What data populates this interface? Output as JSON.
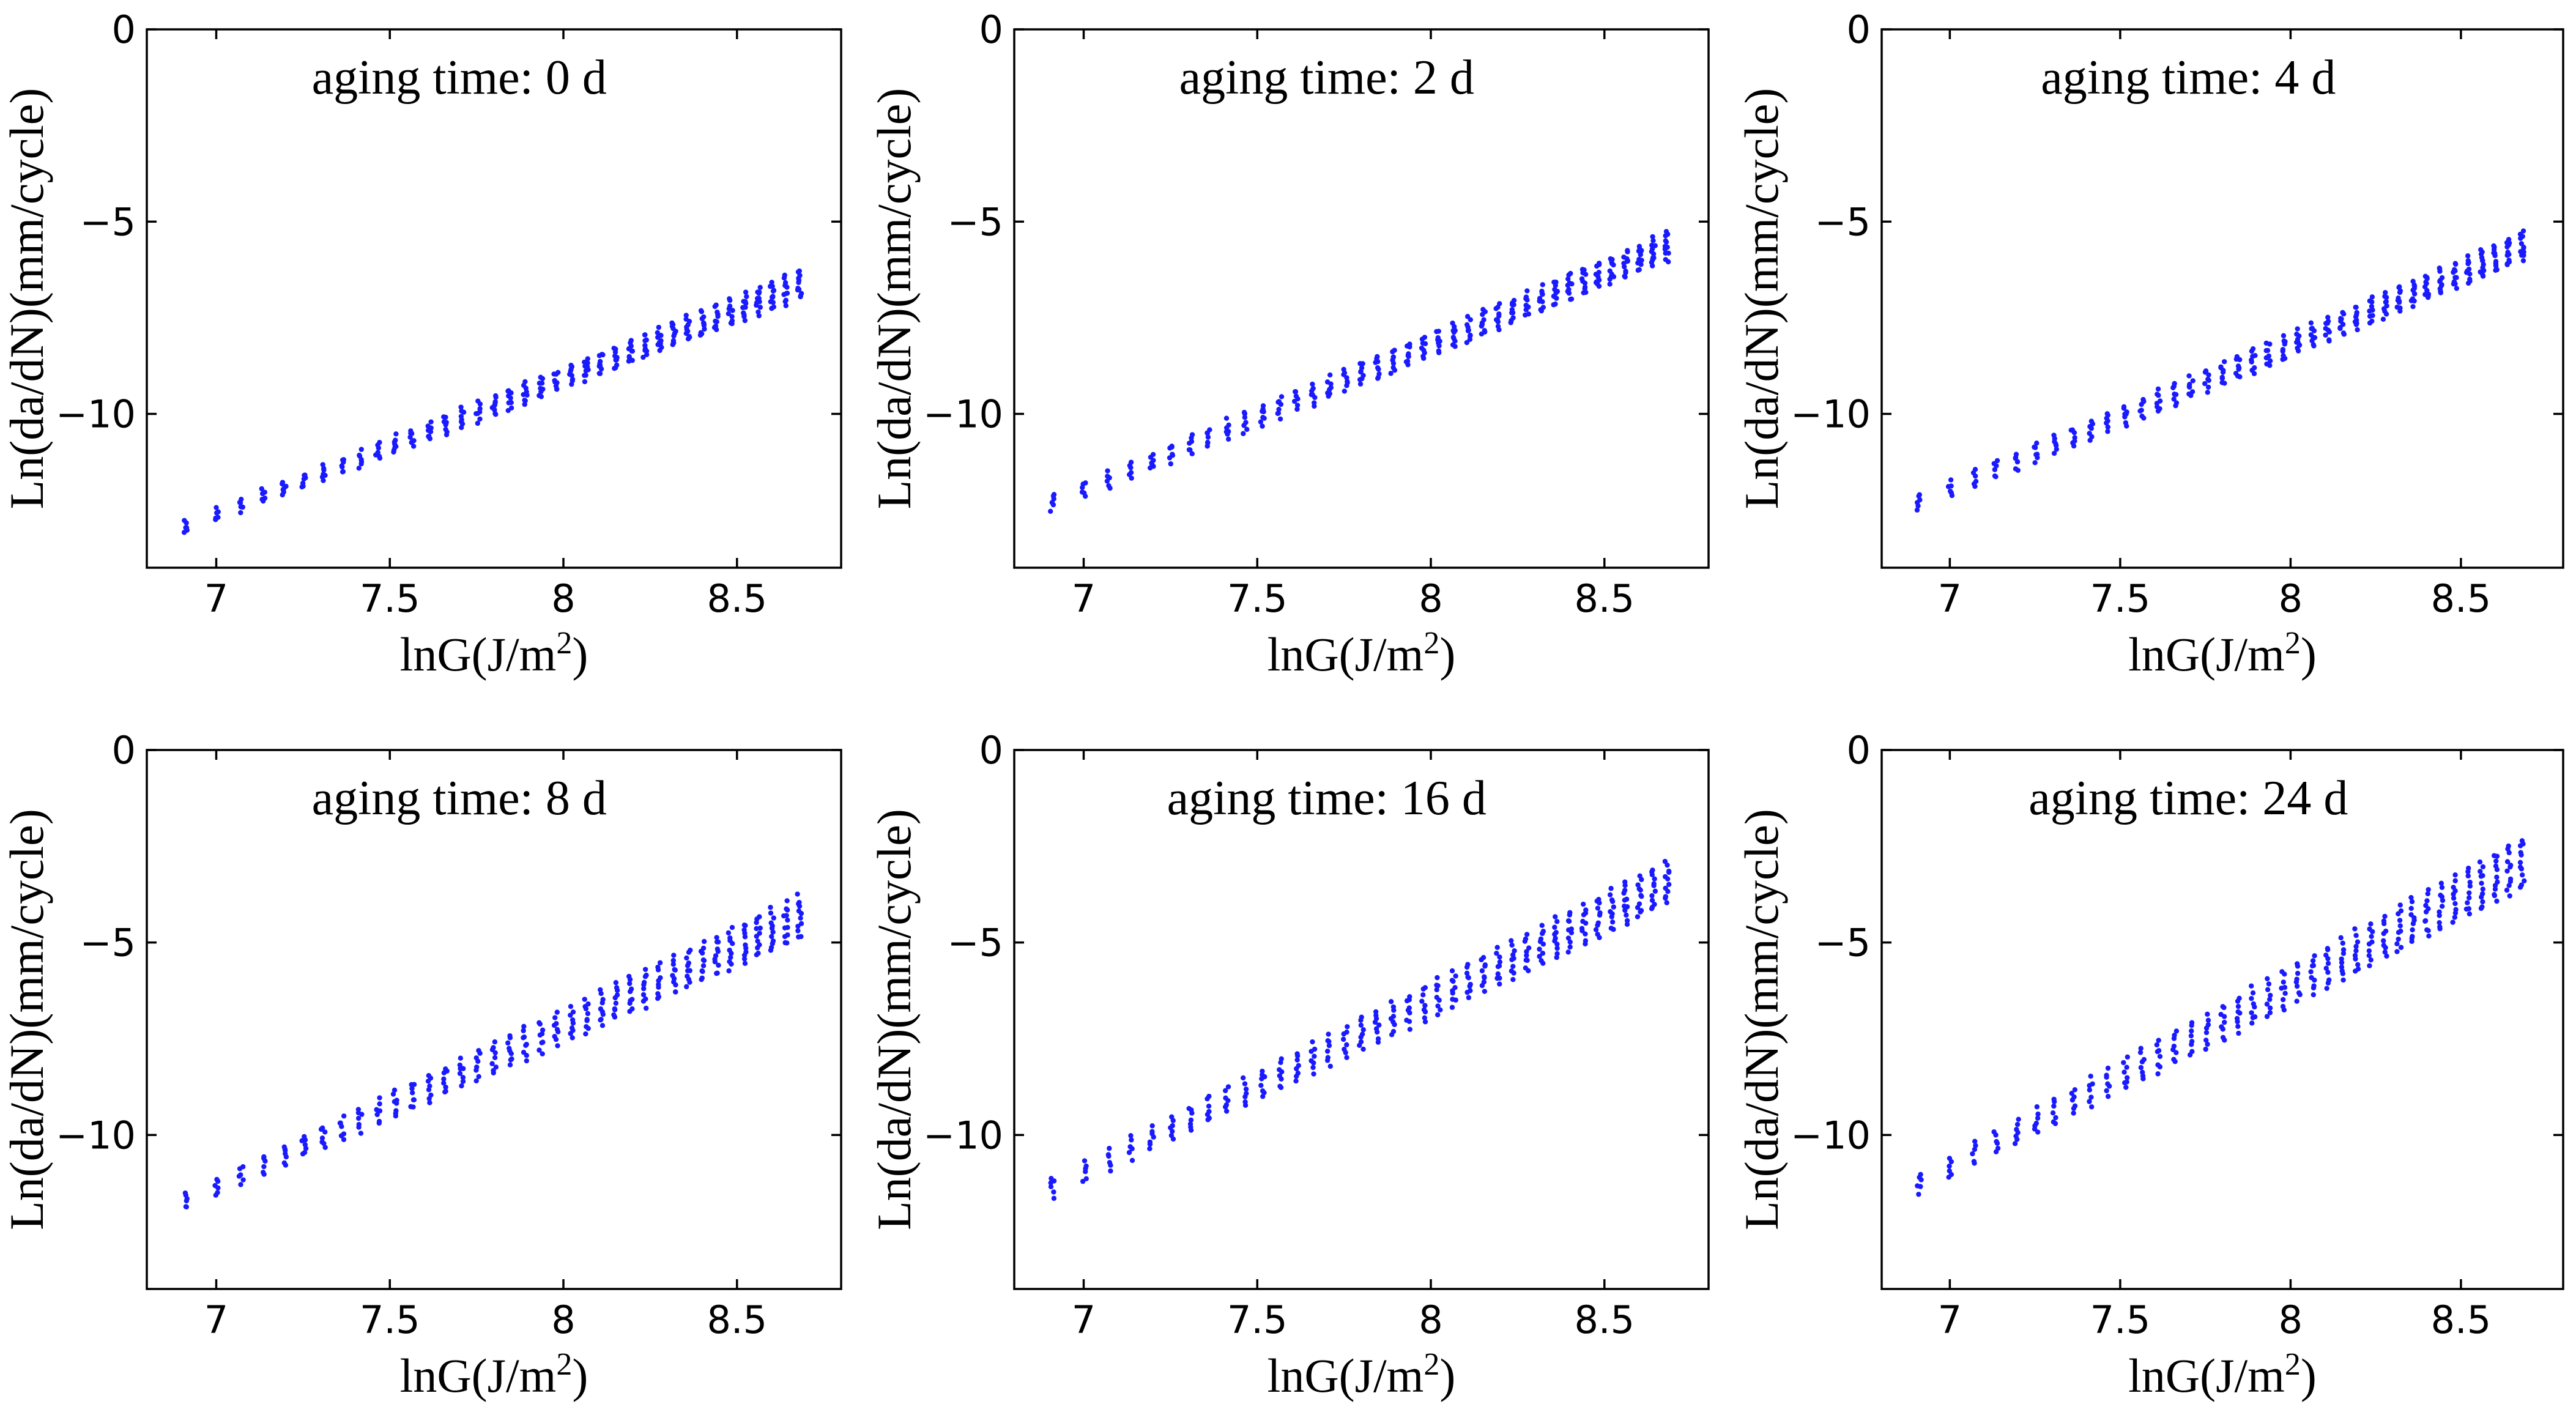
{
  "figure": {
    "marker_color": "#1a1aff",
    "panel_count": 6
  },
  "chart_data": [
    {
      "type": "scatter",
      "annotation": "aging time: 0 d",
      "xlabel": {
        "main": "lnG(J/m",
        "sup": "2",
        "tail": ")"
      },
      "ylabel": "Ln(da/dN)(mm/cycle)",
      "xlim": [
        6.8,
        8.8
      ],
      "ylim": [
        -14,
        0
      ],
      "xticks": [
        7,
        7.5,
        8,
        8.5
      ],
      "yticks": [
        0,
        -5,
        -10
      ],
      "xtick_labels": [
        "7",
        "7.5",
        "8",
        "8.5"
      ],
      "ytick_labels": [
        "0",
        "−5",
        "−10"
      ],
      "x_range": [
        6.91,
        8.68
      ],
      "trend_low": [
        -13.1,
        -7.0
      ],
      "trend_high": [
        -12.8,
        -6.3
      ],
      "points_per_column": 6
    },
    {
      "type": "scatter",
      "annotation": "aging time: 2 d",
      "xlabel": {
        "main": "lnG(J/m",
        "sup": "2",
        "tail": ")"
      },
      "ylabel": "Ln(da/dN)(mm/cycle)",
      "xlim": [
        6.8,
        8.8
      ],
      "ylim": [
        -14,
        0
      ],
      "xticks": [
        7,
        7.5,
        8,
        8.5
      ],
      "yticks": [
        0,
        -5,
        -10
      ],
      "xtick_labels": [
        "7",
        "7.5",
        "8",
        "8.5"
      ],
      "ytick_labels": [
        "0",
        "−5",
        "−10"
      ],
      "x_range": [
        6.91,
        8.68
      ],
      "trend_low": [
        -12.5,
        -6.0
      ],
      "trend_high": [
        -12.1,
        -5.3
      ],
      "points_per_column": 6
    },
    {
      "type": "scatter",
      "annotation": "aging time: 4 d",
      "xlabel": {
        "main": "lnG(J/m",
        "sup": "2",
        "tail": ")"
      },
      "ylabel": "Ln(da/dN)(mm/cycle)",
      "xlim": [
        6.8,
        8.8
      ],
      "ylim": [
        -14,
        0
      ],
      "xticks": [
        7,
        7.5,
        8,
        8.5
      ],
      "yticks": [
        0,
        -5,
        -10
      ],
      "xtick_labels": [
        "7",
        "7.5",
        "8",
        "8.5"
      ],
      "ytick_labels": [
        "0",
        "−5",
        "−10"
      ],
      "x_range": [
        6.91,
        8.68
      ],
      "trend_low": [
        -12.5,
        -6.0
      ],
      "trend_high": [
        -12.1,
        -5.3
      ],
      "points_per_column": 6
    },
    {
      "type": "scatter",
      "annotation": "aging time: 8 d",
      "xlabel": {
        "main": "lnG(J/m",
        "sup": "2",
        "tail": ")"
      },
      "ylabel": "Ln(da/dN)(mm/cycle)",
      "xlim": [
        6.8,
        8.8
      ],
      "ylim": [
        -14,
        0
      ],
      "xticks": [
        7,
        7.5,
        8,
        8.5
      ],
      "yticks": [
        0,
        -5,
        -10
      ],
      "xtick_labels": [
        "7",
        "7.5",
        "8",
        "8.5"
      ],
      "ytick_labels": [
        "0",
        "−5",
        "−10"
      ],
      "x_range": [
        6.91,
        8.68
      ],
      "trend_low": [
        -11.9,
        -4.9
      ],
      "trend_high": [
        -11.5,
        -3.8
      ],
      "points_per_column": 6
    },
    {
      "type": "scatter",
      "annotation": "aging time: 16 d",
      "xlabel": {
        "main": "lnG(J/m",
        "sup": "2",
        "tail": ")"
      },
      "ylabel": "Ln(da/dN)(mm/cycle)",
      "xlim": [
        6.8,
        8.8
      ],
      "ylim": [
        -14,
        0
      ],
      "xticks": [
        7,
        7.5,
        8,
        8.5
      ],
      "yticks": [
        0,
        -5,
        -10
      ],
      "xtick_labels": [
        "7",
        "7.5",
        "8",
        "8.5"
      ],
      "ytick_labels": [
        "0",
        "−5",
        "−10"
      ],
      "x_range": [
        6.91,
        8.68
      ],
      "trend_low": [
        -11.6,
        -4.0
      ],
      "trend_high": [
        -11.1,
        -2.9
      ],
      "points_per_column": 6
    },
    {
      "type": "scatter",
      "annotation": "aging time: 24 d",
      "xlabel": {
        "main": "lnG(J/m",
        "sup": "2",
        "tail": ")"
      },
      "ylabel": "Ln(da/dN)(mm/cycle)",
      "xlim": [
        6.8,
        8.8
      ],
      "ylim": [
        -14,
        0
      ],
      "xticks": [
        7,
        7.5,
        8,
        8.5
      ],
      "yticks": [
        0,
        -5,
        -10
      ],
      "xtick_labels": [
        "7",
        "7.5",
        "8",
        "8.5"
      ],
      "ytick_labels": [
        "0",
        "−5",
        "−10"
      ],
      "x_range": [
        6.91,
        8.68
      ],
      "trend_low": [
        -11.5,
        -3.6
      ],
      "trend_high": [
        -11.0,
        -2.3
      ],
      "points_per_column": 6
    }
  ]
}
